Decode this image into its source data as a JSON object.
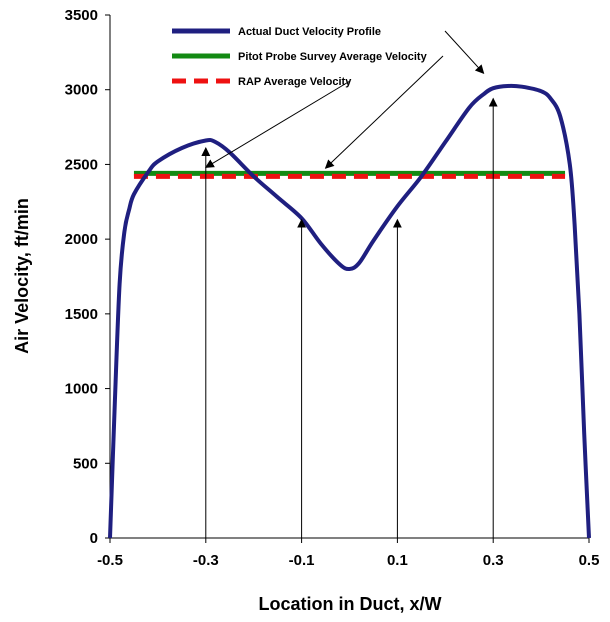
{
  "chart_data": {
    "type": "line",
    "xlabel": "Location in Duct, x/W",
    "ylabel": "Air Velocity, ft/min",
    "xlim": [
      -0.5,
      0.5
    ],
    "ylim": [
      0,
      3500
    ],
    "xticks": [
      "-0.5",
      "-0.3",
      "-0.1",
      "0.1",
      "0.3",
      "0.5"
    ],
    "xtick_values": [
      -0.5,
      -0.3,
      -0.1,
      0.1,
      0.3,
      0.5
    ],
    "yticks": [
      "0",
      "500",
      "1000",
      "1500",
      "2000",
      "2500",
      "3000",
      "3500"
    ],
    "ytick_values": [
      0,
      500,
      1000,
      1500,
      2000,
      2500,
      3000,
      3500
    ],
    "grid": false,
    "legend_position": "top-center",
    "series": [
      {
        "name": "Actual Duct Velocity Profile",
        "style": "solid",
        "color": "#1f1f80",
        "x": [
          -0.5,
          -0.49,
          -0.48,
          -0.47,
          -0.46,
          -0.45,
          -0.42,
          -0.4,
          -0.35,
          -0.3,
          -0.28,
          -0.25,
          -0.2,
          -0.15,
          -0.1,
          -0.06,
          -0.02,
          0.0,
          0.02,
          0.05,
          0.1,
          0.15,
          0.2,
          0.25,
          0.28,
          0.3,
          0.33,
          0.36,
          0.4,
          0.42,
          0.44,
          0.46,
          0.47,
          0.48,
          0.49,
          0.5
        ],
        "y": [
          0,
          900,
          1700,
          2050,
          2200,
          2300,
          2450,
          2520,
          2610,
          2660,
          2650,
          2580,
          2420,
          2280,
          2140,
          1970,
          1830,
          1800,
          1840,
          1990,
          2220,
          2420,
          2650,
          2880,
          2970,
          3010,
          3025,
          3020,
          2990,
          2940,
          2820,
          2500,
          2100,
          1500,
          700,
          0
        ]
      },
      {
        "name": "Pitot Probe Survey Average Velocity",
        "style": "solid",
        "color": "#138a13",
        "x": [
          -0.45,
          0.45
        ],
        "y": [
          2440,
          2440
        ]
      },
      {
        "name": "RAP Average Velocity",
        "style": "dashed",
        "color": "#ee1111",
        "x": [
          -0.45,
          0.45
        ],
        "y": [
          2420,
          2420
        ]
      }
    ],
    "annotations": {
      "vertical_arrows": [
        {
          "x": -0.3,
          "y_top": 2610
        },
        {
          "x": -0.1,
          "y_top": 2130
        },
        {
          "x": 0.1,
          "y_top": 2130
        },
        {
          "x": 0.3,
          "y_top": 2940
        }
      ]
    }
  }
}
